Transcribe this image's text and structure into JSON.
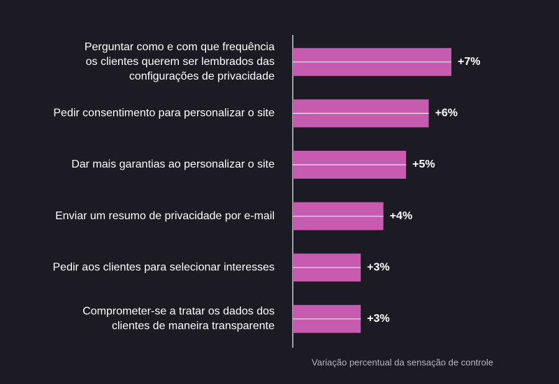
{
  "chart_data": {
    "type": "bar",
    "orientation": "horizontal",
    "categories": [
      [
        "Perguntar como e com que frequência",
        "os clientes querem ser lembrados das",
        "configurações de privacidade"
      ],
      [
        "Pedir consentimento para personalizar o site"
      ],
      [
        "Dar mais garantias ao personalizar o site"
      ],
      [
        "Enviar um resumo de privacidade por e-mail"
      ],
      [
        "Pedir aos clientes para selecionar interesses"
      ],
      [
        "Comprometer-se a tratar os dados dos",
        "clientes de maneira transparente"
      ]
    ],
    "values": [
      7,
      6,
      5,
      4,
      3,
      3
    ],
    "value_labels": [
      "+7%",
      "+6%",
      "+5%",
      "+4%",
      "+3%",
      "+3%"
    ],
    "color": "#c65bb0",
    "x_label": "Variação percentual da sensação de controle"
  }
}
